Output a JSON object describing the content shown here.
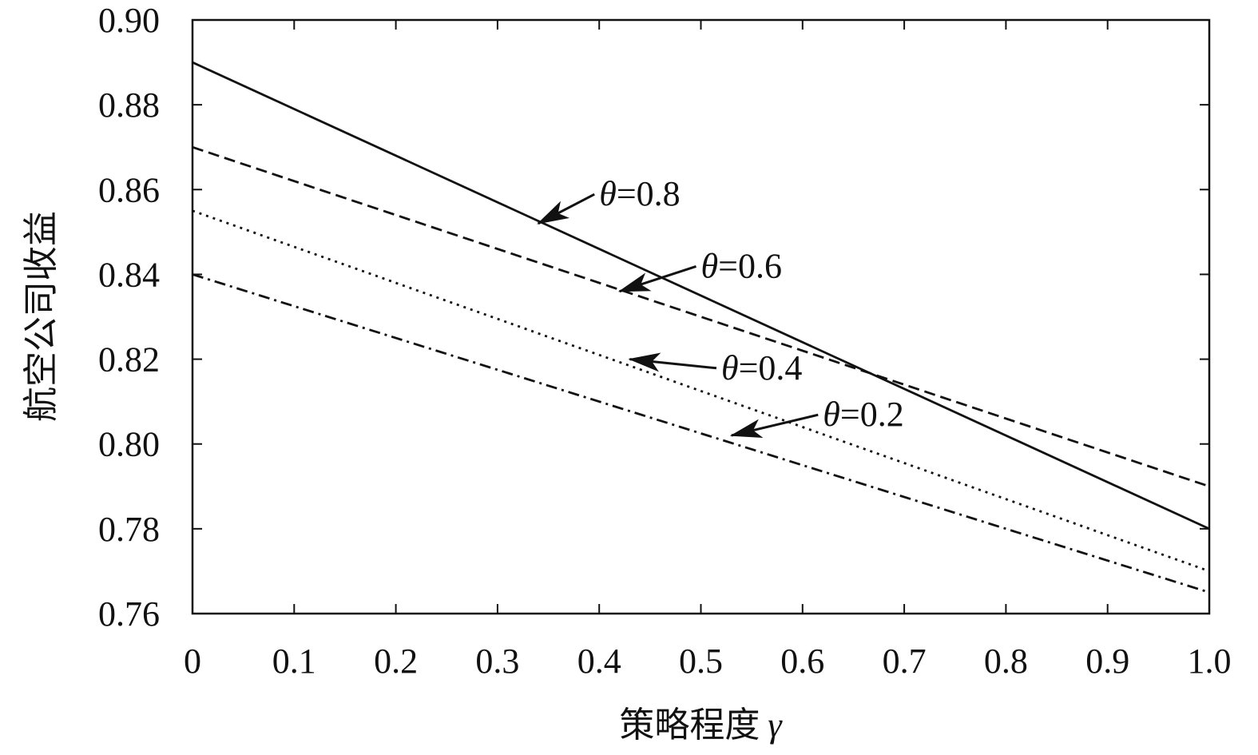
{
  "chart_data": {
    "type": "line",
    "title": "",
    "xlabel": "策略程度",
    "xlabel_var": "γ",
    "ylabel": "航空公司收益",
    "xlim": [
      0,
      1.0
    ],
    "ylim": [
      0.76,
      0.9
    ],
    "x_ticks": [
      0,
      0.1,
      0.2,
      0.3,
      0.4,
      0.5,
      0.6,
      0.7,
      0.8,
      0.9,
      1.0
    ],
    "x_tick_labels": [
      "0",
      "0.1",
      "0.2",
      "0.3",
      "0.4",
      "0.5",
      "0.6",
      "0.7",
      "0.8",
      "0.9",
      "1.0"
    ],
    "y_ticks": [
      0.76,
      0.78,
      0.8,
      0.82,
      0.84,
      0.86,
      0.88,
      0.9
    ],
    "y_tick_labels": [
      "0.76",
      "0.78",
      "0.80",
      "0.82",
      "0.84",
      "0.86",
      "0.88",
      "0.90"
    ],
    "grid": false,
    "series": [
      {
        "label": "θ=0.8",
        "style": "solid",
        "x": [
          0,
          1.0
        ],
        "y": [
          0.89,
          0.78
        ],
        "annotation_at": [
          0.34,
          0.852
        ],
        "annotation_text_pos": [
          0.4,
          0.857
        ]
      },
      {
        "label": "θ=0.6",
        "style": "dashed",
        "x": [
          0,
          1.0
        ],
        "y": [
          0.87,
          0.79
        ],
        "annotation_at": [
          0.42,
          0.836
        ],
        "annotation_text_pos": [
          0.5,
          0.84
        ]
      },
      {
        "label": "θ=0.4",
        "style": "dotted",
        "x": [
          0,
          1.0
        ],
        "y": [
          0.855,
          0.77
        ],
        "annotation_at": [
          0.43,
          0.82
        ],
        "annotation_text_pos": [
          0.52,
          0.816
        ]
      },
      {
        "label": "θ=0.2",
        "style": "dashdot",
        "x": [
          0,
          1.0
        ],
        "y": [
          0.84,
          0.765
        ],
        "annotation_at": [
          0.53,
          0.802
        ],
        "annotation_text_pos": [
          0.62,
          0.805
        ]
      }
    ]
  }
}
